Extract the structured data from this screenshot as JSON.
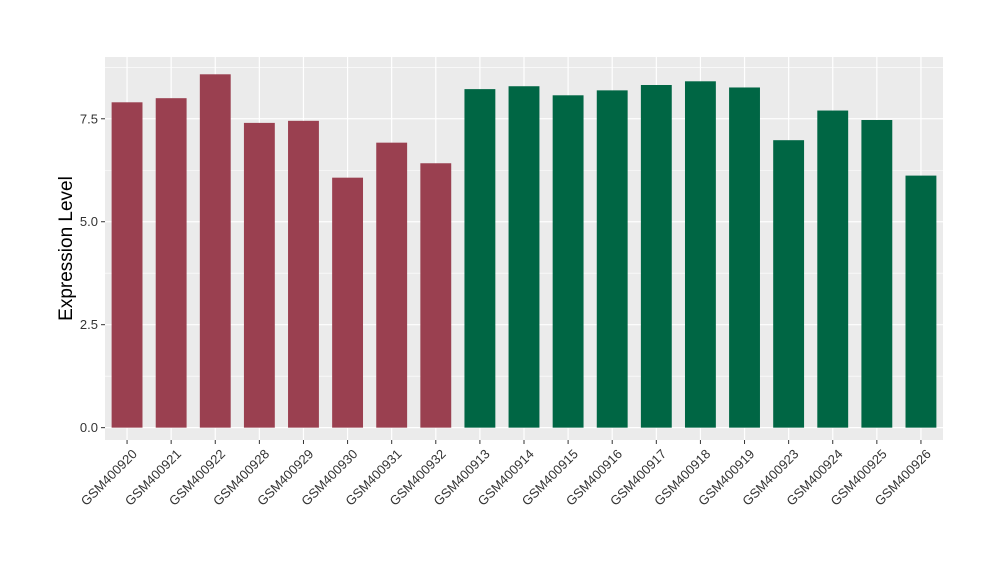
{
  "chart_data": {
    "type": "bar",
    "ylabel": "Expression Level",
    "xlabel": "",
    "ylim": [
      -0.3,
      9.0
    ],
    "yticks": [
      0.0,
      2.5,
      5.0,
      7.5
    ],
    "ytick_labels": [
      "0.0",
      "2.5",
      "5.0",
      "7.5"
    ],
    "grid": true,
    "background_color": "#EBEBEB",
    "grid_color": "#FFFFFF",
    "categories": [
      "GSM400920",
      "GSM400921",
      "GSM400922",
      "GSM400928",
      "GSM400929",
      "GSM400930",
      "GSM400931",
      "GSM400932",
      "GSM400913",
      "GSM400914",
      "GSM400915",
      "GSM400916",
      "GSM400917",
      "GSM400918",
      "GSM400919",
      "GSM400923",
      "GSM400924",
      "GSM400925",
      "GSM400926"
    ],
    "values": [
      7.9,
      8.0,
      8.58,
      7.4,
      7.45,
      6.07,
      6.92,
      6.42,
      8.22,
      8.29,
      8.07,
      8.19,
      8.32,
      8.41,
      8.26,
      6.98,
      7.7,
      7.47,
      6.12
    ],
    "bar_colors": [
      "#9A4050",
      "#9A4050",
      "#9A4050",
      "#9A4050",
      "#9A4050",
      "#9A4050",
      "#9A4050",
      "#9A4050",
      "#006644",
      "#006644",
      "#006644",
      "#006644",
      "#006644",
      "#006644",
      "#006644",
      "#006644",
      "#006644",
      "#006644",
      "#006644"
    ]
  }
}
